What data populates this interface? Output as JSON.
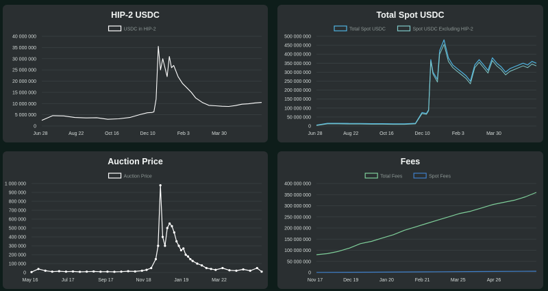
{
  "charts": [
    {
      "id": "hip2",
      "title": "HIP-2 USDC",
      "legend": [
        {
          "label": "USDC in HIP-2",
          "color": "#ffffff"
        }
      ],
      "y_ticks": [
        "0",
        "5 000 000",
        "10 000 000",
        "15 000 000",
        "20 000 000",
        "25 000 000",
        "30 000 000",
        "35 000 000",
        "40 000 000"
      ],
      "x_ticks": [
        "Jun 28",
        "Aug 22",
        "Oct 16",
        "Dec 10",
        "Feb 3",
        "Mar 30"
      ]
    },
    {
      "id": "spot",
      "title": "Total Spot USDC",
      "legend": [
        {
          "label": "Total Spot USDC",
          "color": "#4fb3e0"
        },
        {
          "label": "Spot USDC Excluding HIP-2",
          "color": "#7fc9c8"
        }
      ],
      "y_ticks": [
        "0",
        "50 000 000",
        "100 000 000",
        "150 000 000",
        "200 000 000",
        "250 000 000",
        "300 000 000",
        "350 000 000",
        "400 000 000",
        "450 000 000",
        "500 000 000"
      ],
      "x_ticks": [
        "Jun 28",
        "Aug 22",
        "Oct 16",
        "Dec 10",
        "Feb 3",
        "Mar 30"
      ]
    },
    {
      "id": "auction",
      "title": "Auction Price",
      "legend": [
        {
          "label": "Auction Price",
          "color": "#ffffff"
        }
      ],
      "y_ticks": [
        "0",
        "100 000",
        "200 000",
        "300 000",
        "400 000",
        "500 000",
        "600 000",
        "700 000",
        "800 000",
        "900 000",
        "1 000 000"
      ],
      "x_ticks": [
        "May 16",
        "Jul 17",
        "Sep 17",
        "Nov 18",
        "Jan 19",
        "Mar 22"
      ]
    },
    {
      "id": "fees",
      "title": "Fees",
      "legend": [
        {
          "label": "Total Fees",
          "color": "#7fcf9a"
        },
        {
          "label": "Spot Fees",
          "color": "#3f7fc9"
        }
      ],
      "y_ticks": [
        "0",
        "50 000 000",
        "100 000 000",
        "150 000 000",
        "200 000 000",
        "250 000 000",
        "300 000 000",
        "350 000 000",
        "400 000 000"
      ],
      "x_ticks": [
        "Nov 17",
        "Dec 19",
        "Jan 20",
        "Feb 21",
        "Mar 25",
        "Apr 26"
      ]
    }
  ],
  "chart_data": [
    {
      "type": "line",
      "title": "HIP-2 USDC",
      "ylim": [
        0,
        40000000
      ],
      "series": [
        {
          "name": "USDC in HIP-2",
          "x_frac": [
            0.0,
            0.05,
            0.1,
            0.15,
            0.2,
            0.25,
            0.3,
            0.35,
            0.4,
            0.45,
            0.48,
            0.5,
            0.51,
            0.52,
            0.53,
            0.54,
            0.55,
            0.57,
            0.58,
            0.59,
            0.6,
            0.62,
            0.64,
            0.66,
            0.68,
            0.7,
            0.73,
            0.76,
            0.79,
            0.82,
            0.85,
            0.88,
            0.91,
            0.94,
            0.97,
            1.0
          ],
          "values": [
            2500000,
            4600000,
            4500000,
            3800000,
            3600000,
            3700000,
            3000000,
            3200000,
            3800000,
            5200000,
            5900000,
            6000000,
            6300000,
            12000000,
            35500000,
            25000000,
            30000000,
            22000000,
            31000000,
            26000000,
            27000000,
            22000000,
            19000000,
            17000000,
            15000000,
            12500000,
            10500000,
            9200000,
            9000000,
            8800000,
            8700000,
            9100000,
            9700000,
            9900000,
            10300000,
            10500000
          ]
        }
      ]
    },
    {
      "type": "line",
      "title": "Total Spot USDC",
      "ylim": [
        0,
        500000000
      ],
      "series": [
        {
          "name": "Total Spot USDC",
          "x_frac": [
            0.0,
            0.05,
            0.1,
            0.15,
            0.2,
            0.25,
            0.3,
            0.35,
            0.4,
            0.45,
            0.48,
            0.5,
            0.51,
            0.52,
            0.53,
            0.55,
            0.56,
            0.58,
            0.6,
            0.62,
            0.64,
            0.66,
            0.68,
            0.7,
            0.72,
            0.74,
            0.76,
            0.78,
            0.8,
            0.82,
            0.84,
            0.86,
            0.88,
            0.9,
            0.92,
            0.94,
            0.96,
            0.98,
            1.0
          ],
          "values": [
            5000000,
            15000000,
            15000000,
            14000000,
            14000000,
            13000000,
            13000000,
            12000000,
            12000000,
            15000000,
            75000000,
            70000000,
            90000000,
            370000000,
            300000000,
            260000000,
            420000000,
            480000000,
            380000000,
            340000000,
            320000000,
            300000000,
            280000000,
            250000000,
            340000000,
            370000000,
            340000000,
            310000000,
            380000000,
            350000000,
            330000000,
            300000000,
            320000000,
            330000000,
            340000000,
            350000000,
            340000000,
            360000000,
            350000000
          ]
        },
        {
          "name": "Spot USDC Excluding HIP-2",
          "x_frac": [
            0.0,
            0.05,
            0.1,
            0.15,
            0.2,
            0.25,
            0.3,
            0.35,
            0.4,
            0.45,
            0.48,
            0.5,
            0.51,
            0.52,
            0.53,
            0.55,
            0.56,
            0.58,
            0.6,
            0.62,
            0.64,
            0.66,
            0.68,
            0.7,
            0.72,
            0.74,
            0.76,
            0.78,
            0.8,
            0.82,
            0.84,
            0.86,
            0.88,
            0.9,
            0.92,
            0.94,
            0.96,
            0.98,
            1.0
          ],
          "values": [
            3000000,
            12000000,
            12000000,
            11000000,
            11000000,
            10000000,
            10000000,
            9000000,
            9000000,
            12000000,
            70000000,
            65000000,
            85000000,
            360000000,
            290000000,
            245000000,
            400000000,
            455000000,
            360000000,
            325000000,
            305000000,
            285000000,
            265000000,
            235000000,
            325000000,
            355000000,
            325000000,
            295000000,
            365000000,
            335000000,
            315000000,
            285000000,
            305000000,
            315000000,
            325000000,
            335000000,
            325000000,
            345000000,
            335000000
          ]
        }
      ]
    },
    {
      "type": "line",
      "title": "Auction Price",
      "ylim": [
        0,
        1000000
      ],
      "series": [
        {
          "name": "Auction Price",
          "x_frac": [
            0.0,
            0.03,
            0.06,
            0.09,
            0.12,
            0.15,
            0.18,
            0.21,
            0.24,
            0.27,
            0.3,
            0.33,
            0.36,
            0.39,
            0.42,
            0.45,
            0.48,
            0.5,
            0.52,
            0.54,
            0.55,
            0.56,
            0.57,
            0.58,
            0.59,
            0.6,
            0.61,
            0.62,
            0.63,
            0.64,
            0.65,
            0.66,
            0.67,
            0.68,
            0.69,
            0.7,
            0.72,
            0.74,
            0.76,
            0.78,
            0.8,
            0.83,
            0.86,
            0.89,
            0.92,
            0.95,
            0.98,
            1.0
          ],
          "values": [
            5000,
            40000,
            20000,
            10000,
            15000,
            10000,
            12000,
            8000,
            10000,
            12000,
            9000,
            10000,
            8000,
            10000,
            15000,
            12000,
            20000,
            30000,
            50000,
            150000,
            300000,
            980000,
            400000,
            300000,
            500000,
            550000,
            520000,
            450000,
            350000,
            300000,
            250000,
            270000,
            200000,
            180000,
            150000,
            130000,
            100000,
            80000,
            50000,
            40000,
            30000,
            50000,
            25000,
            20000,
            35000,
            20000,
            50000,
            10000
          ]
        }
      ]
    },
    {
      "type": "line",
      "title": "Fees",
      "ylim": [
        0,
        400000000
      ],
      "series": [
        {
          "name": "Total Fees",
          "x_frac": [
            0.0,
            0.05,
            0.1,
            0.15,
            0.2,
            0.25,
            0.3,
            0.35,
            0.4,
            0.45,
            0.5,
            0.55,
            0.6,
            0.65,
            0.7,
            0.75,
            0.8,
            0.85,
            0.9,
            0.95,
            1.0
          ],
          "values": [
            80000000,
            85000000,
            95000000,
            110000000,
            130000000,
            140000000,
            155000000,
            170000000,
            190000000,
            205000000,
            220000000,
            235000000,
            250000000,
            265000000,
            275000000,
            290000000,
            305000000,
            315000000,
            325000000,
            340000000,
            360000000
          ]
        },
        {
          "name": "Spot Fees",
          "x_frac": [
            0.0,
            0.25,
            0.5,
            0.75,
            1.0
          ],
          "values": [
            500000,
            1500000,
            3000000,
            4500000,
            6000000
          ]
        }
      ]
    }
  ]
}
